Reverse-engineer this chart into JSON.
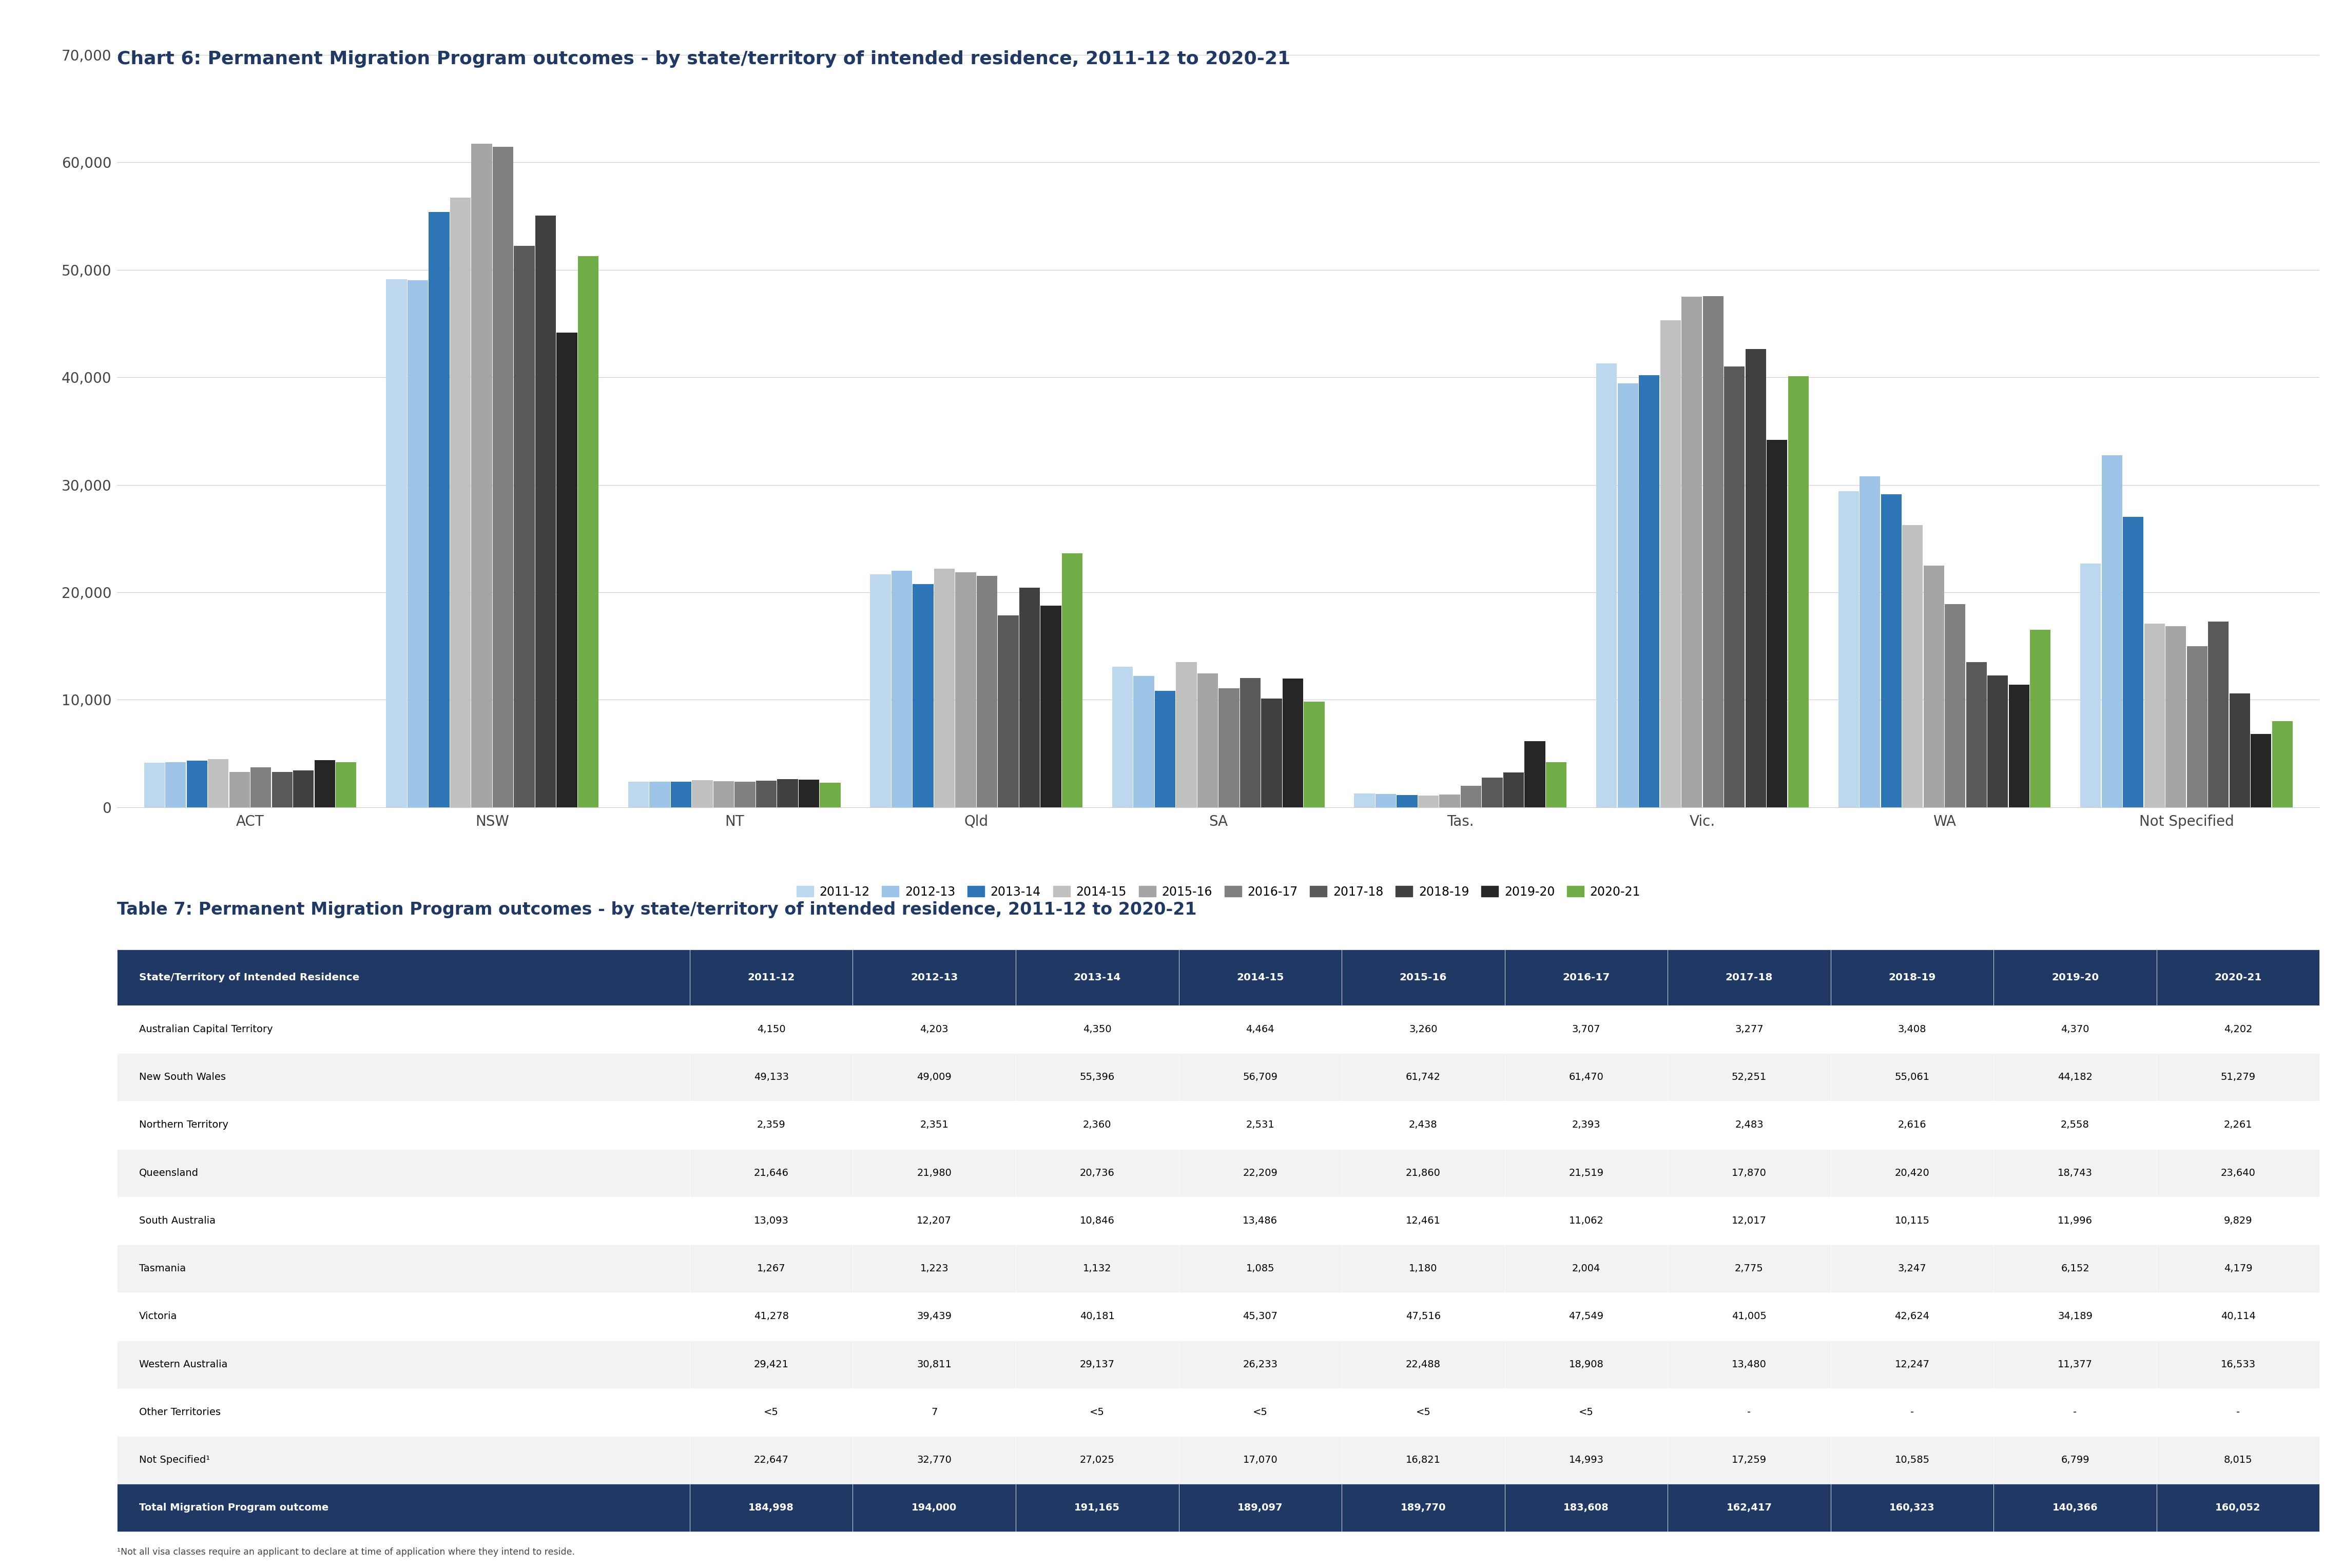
{
  "chart_title": "Chart 6: Permanent Migration Program outcomes - by state/territory of intended residence, 2011-12 to 2020-21",
  "table_title": "Table 7: Permanent Migration Program outcomes - by state/territory of intended residence, 2011-12 to 2020-21",
  "categories": [
    "ACT",
    "NSW",
    "NT",
    "Qld",
    "SA",
    "Tas.",
    "Vic.",
    "WA",
    "Not Specified"
  ],
  "years": [
    "2011-12",
    "2012-13",
    "2013-14",
    "2014-15",
    "2015-16",
    "2016-17",
    "2017-18",
    "2018-19",
    "2019-20",
    "2020-21"
  ],
  "bar_colors": [
    "#BDD7EE",
    "#9DC3E6",
    "#2E75B6",
    "#C0C0C0",
    "#A5A5A5",
    "#808080",
    "#595959",
    "#404040",
    "#262626",
    "#70AD47"
  ],
  "data": {
    "ACT": [
      4150,
      4203,
      4350,
      4464,
      3260,
      3707,
      3277,
      3408,
      4370,
      4202
    ],
    "NSW": [
      49133,
      49009,
      55396,
      56709,
      61742,
      61470,
      52251,
      55061,
      44182,
      51279
    ],
    "NT": [
      2359,
      2351,
      2360,
      2531,
      2438,
      2393,
      2483,
      2616,
      2558,
      2261
    ],
    "Qld": [
      21646,
      21980,
      20736,
      22209,
      21860,
      21519,
      17870,
      20420,
      18743,
      23640
    ],
    "SA": [
      13093,
      12207,
      10846,
      13486,
      12461,
      11062,
      12017,
      10115,
      11996,
      9829
    ],
    "Tas.": [
      1267,
      1223,
      1132,
      1085,
      1180,
      2004,
      2775,
      3247,
      6152,
      4179
    ],
    "Vic.": [
      41278,
      39439,
      40181,
      45307,
      47516,
      47549,
      41005,
      42624,
      34189,
      40114
    ],
    "WA": [
      29421,
      30811,
      29137,
      26233,
      22488,
      18908,
      13480,
      12247,
      11377,
      16533
    ],
    "Not Specified": [
      22647,
      32770,
      27025,
      17070,
      16821,
      14993,
      17259,
      10585,
      6799,
      8015
    ]
  },
  "table_data": {
    "headers": [
      "State/Territory of Intended Residence",
      "2011-12",
      "2012-13",
      "2013-14",
      "2014-15",
      "2015-16",
      "2016-17",
      "2017-18",
      "2018-19",
      "2019-20",
      "2020-21"
    ],
    "rows": [
      [
        "Australian Capital Territory",
        "4,150",
        "4,203",
        "4,350",
        "4,464",
        "3,260",
        "3,707",
        "3,277",
        "3,408",
        "4,370",
        "4,202"
      ],
      [
        "New South Wales",
        "49,133",
        "49,009",
        "55,396",
        "56,709",
        "61,742",
        "61,470",
        "52,251",
        "55,061",
        "44,182",
        "51,279"
      ],
      [
        "Northern Territory",
        "2,359",
        "2,351",
        "2,360",
        "2,531",
        "2,438",
        "2,393",
        "2,483",
        "2,616",
        "2,558",
        "2,261"
      ],
      [
        "Queensland",
        "21,646",
        "21,980",
        "20,736",
        "22,209",
        "21,860",
        "21,519",
        "17,870",
        "20,420",
        "18,743",
        "23,640"
      ],
      [
        "South Australia",
        "13,093",
        "12,207",
        "10,846",
        "13,486",
        "12,461",
        "11,062",
        "12,017",
        "10,115",
        "11,996",
        "9,829"
      ],
      [
        "Tasmania",
        "1,267",
        "1,223",
        "1,132",
        "1,085",
        "1,180",
        "2,004",
        "2,775",
        "3,247",
        "6,152",
        "4,179"
      ],
      [
        "Victoria",
        "41,278",
        "39,439",
        "40,181",
        "45,307",
        "47,516",
        "47,549",
        "41,005",
        "42,624",
        "34,189",
        "40,114"
      ],
      [
        "Western Australia",
        "29,421",
        "30,811",
        "29,137",
        "26,233",
        "22,488",
        "18,908",
        "13,480",
        "12,247",
        "11,377",
        "16,533"
      ],
      [
        "Other Territories",
        "<5",
        "7",
        "<5",
        "<5",
        "<5",
        "<5",
        "-",
        "-",
        "-",
        "-"
      ],
      [
        "Not Specified¹",
        "22,647",
        "32,770",
        "27,025",
        "17,070",
        "16,821",
        "14,993",
        "17,259",
        "10,585",
        "6,799",
        "8,015"
      ],
      [
        "Total Migration Program outcome",
        "184,998",
        "194,000",
        "191,165",
        "189,097",
        "189,770",
        "183,608",
        "162,417",
        "160,323",
        "140,366",
        "160,052"
      ]
    ],
    "header_bg": "#1F3864",
    "header_fg": "#FFFFFF",
    "total_bg": "#1F3864",
    "total_fg": "#FFFFFF",
    "even_bg": "#FFFFFF",
    "odd_bg": "#F2F2F2"
  },
  "footnote": "¹Not all visa classes require an applicant to declare at time of application where they intend to reside.",
  "ylim": [
    0,
    70000
  ],
  "yticks": [
    0,
    10000,
    20000,
    30000,
    40000,
    50000,
    60000,
    70000
  ],
  "background_color": "#FFFFFF",
  "title_color": "#1F3864",
  "table_title_color": "#1F3864"
}
